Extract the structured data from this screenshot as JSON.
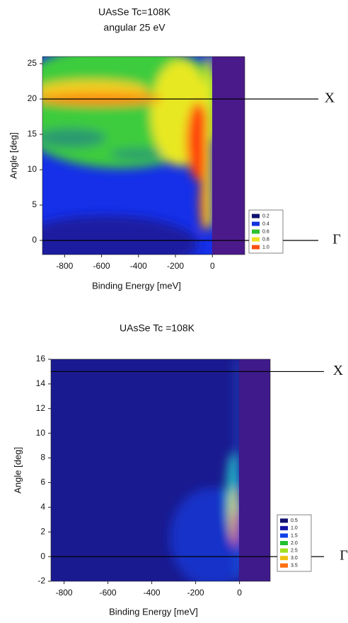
{
  "chart_data": [
    {
      "type": "heatmap",
      "title": "UAsSe Tc=108K",
      "subtitle": "angular 25 eV",
      "x_label": "Binding Energy [meV]",
      "y_label": "Angle [deg]",
      "xlim": [
        -920,
        175
      ],
      "ylim": [
        -2,
        26
      ],
      "xticks": [
        -800,
        -600,
        -400,
        -200,
        0
      ],
      "yticks": [
        0,
        5,
        10,
        15,
        20,
        25
      ],
      "levels": [
        0.2,
        0.4,
        0.6,
        0.8,
        {
          "value": 1,
          "label": "1.0"
        }
      ],
      "level_colors": [
        "#10106e",
        "#1030e0",
        "#30c030",
        "#f0e020",
        "#ff5010"
      ],
      "annotations": [
        {
          "text": "X",
          "y": 20
        },
        {
          "text": "Γ",
          "y": 0
        }
      ]
    },
    {
      "type": "heatmap",
      "title": "UAsSe Tc =108K",
      "x_label": "Binding Energy [meV]",
      "y_label": "Angle [deg]",
      "xlim": [
        -860,
        140
      ],
      "ylim": [
        -2,
        16
      ],
      "xticks": [
        -800,
        -600,
        -400,
        -200,
        0
      ],
      "yticks": [
        -2,
        0,
        2,
        4,
        6,
        8,
        10,
        12,
        14,
        16
      ],
      "levels": [
        0.5,
        {
          "value": 1,
          "label": "1.0"
        },
        1.5,
        {
          "value": 2,
          "label": "2.0"
        },
        2.5,
        {
          "value": 3,
          "label": "3.0"
        },
        3.5
      ],
      "level_colors": [
        "#10106e",
        "#1414a8",
        "#1040e8",
        "#20c030",
        "#a0e020",
        "#f0c010",
        "#ff7010"
      ],
      "annotations": [
        {
          "text": "X",
          "y": 15
        },
        {
          "text": "Γ",
          "y": 0
        }
      ]
    }
  ]
}
